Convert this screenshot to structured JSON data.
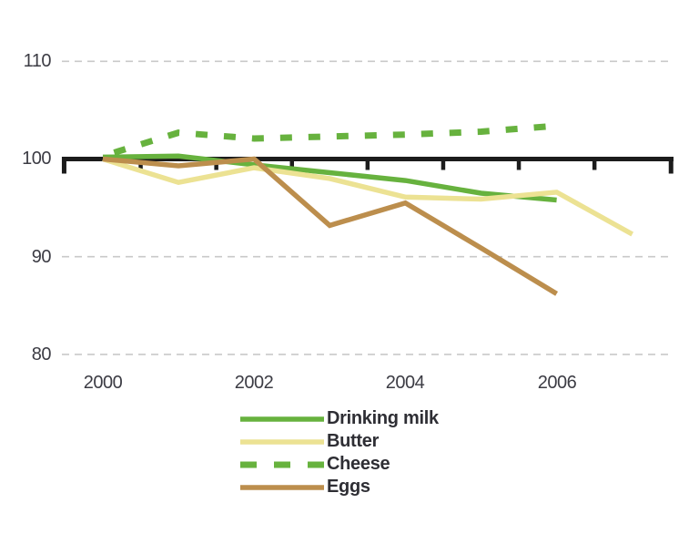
{
  "figure": {
    "background": "#ffffff",
    "description": "Indexed line chart of dairy product consumption, year 2000 = 100"
  },
  "colors": {
    "axis_baseline": "#1c1c1c",
    "gridline": "#c9c9c9",
    "tick_label_text": "#3c3c44",
    "legend_text": "#2e2e34",
    "green": "#67b23e",
    "pale_yellow": "#ece293",
    "brown": "#bc8e4d"
  },
  "chart_data": {
    "type": "line",
    "title": "",
    "xlabel": "",
    "ylabel": "",
    "x": [
      2000,
      2001,
      2002,
      2003,
      2004,
      2005,
      2006,
      2007
    ],
    "series": [
      {
        "name": "Drinking milk",
        "color": "#67b23e",
        "dash": false,
        "values": [
          100.2,
          100.3,
          99.4,
          98.6,
          97.8,
          96.5,
          95.8,
          null
        ]
      },
      {
        "name": "Butter",
        "color": "#ece293",
        "dash": false,
        "values": [
          100,
          97.6,
          99.1,
          98.0,
          96.1,
          95.9,
          96.6,
          92.3
        ]
      },
      {
        "name": "Cheese",
        "color": "#67b23e",
        "dash": true,
        "values": [
          100.3,
          102.7,
          102.1,
          102.3,
          102.5,
          102.8,
          103.4,
          null
        ]
      },
      {
        "name": "Eggs",
        "color": "#bc8e4d",
        "dash": false,
        "values": [
          100,
          99.3,
          100,
          93.2,
          95.5,
          90.9,
          86.2,
          null
        ]
      }
    ],
    "ylim": [
      78,
      113
    ],
    "baseline_value": 100,
    "yticks": [
      {
        "value": 110,
        "label": "110"
      },
      {
        "value": 100,
        "label": "100"
      },
      {
        "value": 90,
        "label": "90"
      },
      {
        "value": 80,
        "label": "80"
      }
    ],
    "xticks": [
      {
        "year": 2000,
        "label": "2000"
      },
      {
        "year": 2002,
        "label": "2002"
      },
      {
        "year": 2004,
        "label": "2004"
      },
      {
        "year": 2006,
        "label": "2006"
      }
    ],
    "axis_minor_ticks": [
      2000.5,
      2001.5,
      2002.5,
      2003.5,
      2004.5,
      2005.5,
      2006.5
    ],
    "axis_span_years": [
      1999.5,
      2007.5
    ],
    "grid": "dashed horizontal gridlines at 110, 90, 80; solid black emphasized baseline at 100",
    "legend_position": "bottom-center"
  }
}
